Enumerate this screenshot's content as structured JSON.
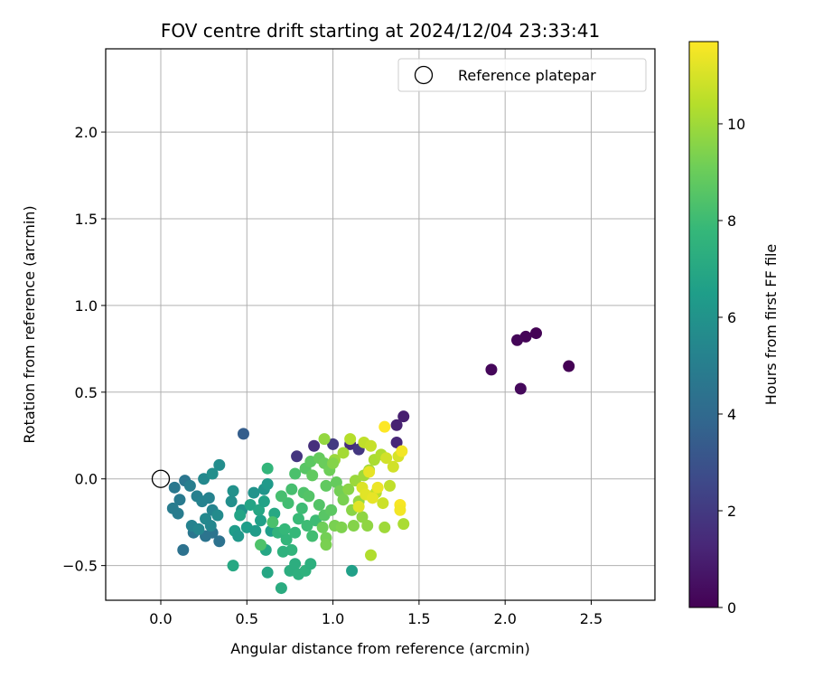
{
  "chart_data": {
    "type": "scatter",
    "title": "FOV centre drift starting at 2024/12/04 23:33:41",
    "xlabel": "Angular distance from reference (arcmin)",
    "ylabel": "Rotation from reference (arcmin)",
    "xlim": [
      -0.32,
      2.87
    ],
    "ylim": [
      -0.7,
      2.48
    ],
    "xticks": [
      "0.0",
      "0.5",
      "1.0",
      "1.5",
      "2.0",
      "2.5"
    ],
    "xtick_values": [
      0.0,
      0.5,
      1.0,
      1.5,
      2.0,
      2.5
    ],
    "yticks": [
      "−0.5",
      "0.0",
      "0.5",
      "1.0",
      "1.5",
      "2.0"
    ],
    "ytick_values": [
      -0.5,
      0.0,
      0.5,
      1.0,
      1.5,
      2.0
    ],
    "grid": true,
    "legend": {
      "position": "top-right",
      "entries": [
        {
          "label": "Reference platepar",
          "marker": "open-circle"
        }
      ]
    },
    "reference_point": {
      "x": 0.0,
      "y": 0.0
    },
    "colorbar": {
      "label": "Hours from first FF file",
      "colormap": "viridis",
      "range": [
        0,
        11.7
      ],
      "ticks": [
        "0",
        "2",
        "4",
        "6",
        "8",
        "10"
      ],
      "tick_values": [
        0,
        2,
        4,
        6,
        8,
        10
      ],
      "stops": [
        "#440154",
        "#482878",
        "#3e4989",
        "#31688e",
        "#26828e",
        "#1f9e89",
        "#35b779",
        "#6ece58",
        "#b5de2b",
        "#fde725"
      ]
    },
    "series": [
      {
        "points": [
          [
            2.37,
            0.65,
            0.0
          ],
          [
            2.18,
            0.84,
            0.05
          ],
          [
            2.12,
            0.82,
            0.1
          ],
          [
            2.07,
            0.8,
            0.15
          ],
          [
            1.92,
            0.63,
            0.2
          ],
          [
            2.09,
            0.52,
            0.25
          ],
          [
            1.41,
            0.36,
            1.0
          ],
          [
            1.37,
            0.31,
            1.1
          ],
          [
            1.37,
            0.21,
            1.3
          ],
          [
            1.1,
            0.2,
            1.5
          ],
          [
            0.89,
            0.19,
            1.6
          ],
          [
            0.79,
            0.13,
            1.8
          ],
          [
            1.0,
            0.2,
            2.0
          ],
          [
            1.15,
            0.17,
            1.9
          ],
          [
            0.48,
            0.26,
            3.5
          ],
          [
            0.13,
            -0.41,
            4.4
          ],
          [
            0.34,
            -0.36,
            4.4
          ],
          [
            0.3,
            -0.31,
            4.5
          ],
          [
            0.19,
            -0.31,
            4.6
          ],
          [
            0.26,
            -0.33,
            4.5
          ],
          [
            0.08,
            -0.05,
            4.7
          ],
          [
            0.14,
            -0.01,
            4.6
          ],
          [
            0.11,
            -0.12,
            4.8
          ],
          [
            0.07,
            -0.17,
            4.9
          ],
          [
            0.1,
            -0.2,
            4.9
          ],
          [
            0.17,
            -0.04,
            5.0
          ],
          [
            0.21,
            -0.1,
            5.1
          ],
          [
            0.24,
            -0.13,
            5.2
          ],
          [
            0.28,
            -0.11,
            5.2
          ],
          [
            0.3,
            -0.18,
            5.3
          ],
          [
            0.18,
            -0.27,
            5.2
          ],
          [
            0.22,
            -0.29,
            5.4
          ],
          [
            0.26,
            -0.23,
            5.5
          ],
          [
            0.29,
            -0.27,
            5.4
          ],
          [
            0.33,
            -0.21,
            5.6
          ],
          [
            0.25,
            0.0,
            5.5
          ],
          [
            0.34,
            0.08,
            5.7
          ],
          [
            0.3,
            0.03,
            5.8
          ],
          [
            0.42,
            -0.07,
            5.9
          ],
          [
            0.41,
            -0.13,
            5.8
          ],
          [
            0.47,
            -0.18,
            6.0
          ],
          [
            0.54,
            -0.08,
            6.0
          ],
          [
            0.6,
            -0.06,
            6.1
          ],
          [
            0.62,
            -0.03,
            6.3
          ],
          [
            0.43,
            -0.3,
            6.4
          ],
          [
            0.45,
            -0.33,
            6.2
          ],
          [
            0.5,
            -0.28,
            6.5
          ],
          [
            0.55,
            -0.3,
            6.4
          ],
          [
            0.58,
            -0.24,
            6.6
          ],
          [
            0.64,
            -0.3,
            6.5
          ],
          [
            0.46,
            -0.21,
            6.8
          ],
          [
            0.52,
            -0.15,
            6.8
          ],
          [
            0.57,
            -0.18,
            6.9
          ],
          [
            0.6,
            -0.13,
            6.7
          ],
          [
            0.66,
            -0.2,
            7.0
          ],
          [
            0.61,
            -0.41,
            6.9
          ],
          [
            0.62,
            -0.54,
            6.9
          ],
          [
            0.42,
            -0.5,
            7.0
          ],
          [
            0.7,
            -0.63,
            7.2
          ],
          [
            0.75,
            -0.53,
            7.3
          ],
          [
            0.8,
            -0.55,
            7.4
          ],
          [
            0.78,
            -0.49,
            7.3
          ],
          [
            0.84,
            -0.53,
            7.5
          ],
          [
            0.87,
            -0.49,
            7.4
          ],
          [
            0.76,
            -0.41,
            7.6
          ],
          [
            0.71,
            -0.42,
            7.5
          ],
          [
            0.73,
            -0.35,
            7.7
          ],
          [
            0.68,
            -0.31,
            7.6
          ],
          [
            0.72,
            -0.29,
            7.8
          ],
          [
            0.78,
            -0.31,
            7.8
          ],
          [
            0.8,
            -0.23,
            7.9
          ],
          [
            0.85,
            -0.27,
            8.0
          ],
          [
            0.88,
            -0.33,
            8.1
          ],
          [
            0.9,
            -0.24,
            8.0
          ],
          [
            0.82,
            -0.17,
            8.0
          ],
          [
            0.74,
            -0.14,
            8.1
          ],
          [
            0.7,
            -0.1,
            8.2
          ],
          [
            0.76,
            -0.06,
            8.2
          ],
          [
            0.62,
            0.06,
            7.7
          ],
          [
            0.78,
            0.03,
            8.3
          ],
          [
            0.83,
            -0.08,
            8.4
          ],
          [
            0.86,
            -0.1,
            8.5
          ],
          [
            0.92,
            -0.15,
            8.5
          ],
          [
            0.95,
            -0.21,
            8.6
          ],
          [
            0.99,
            -0.18,
            8.7
          ],
          [
            0.96,
            -0.04,
            8.8
          ],
          [
            1.02,
            -0.02,
            8.9
          ],
          [
            0.84,
            0.06,
            8.6
          ],
          [
            0.87,
            0.1,
            8.7
          ],
          [
            0.92,
            0.12,
            8.9
          ],
          [
            0.95,
            0.09,
            9.0
          ],
          [
            0.98,
            0.05,
            9.1
          ],
          [
            1.04,
            -0.07,
            9.2
          ],
          [
            1.06,
            -0.12,
            9.3
          ],
          [
            0.94,
            -0.28,
            9.1
          ],
          [
            0.96,
            -0.34,
            9.2
          ],
          [
            0.96,
            -0.38,
            9.3
          ],
          [
            1.01,
            -0.27,
            9.3
          ],
          [
            1.05,
            -0.28,
            9.4
          ],
          [
            1.12,
            -0.27,
            9.5
          ],
          [
            1.11,
            -0.18,
            9.6
          ],
          [
            1.17,
            -0.22,
            9.7
          ],
          [
            1.2,
            -0.27,
            9.7
          ],
          [
            1.15,
            -0.13,
            9.8
          ],
          [
            1.09,
            -0.06,
            9.6
          ],
          [
            1.13,
            -0.01,
            9.9
          ],
          [
            1.18,
            0.02,
            10.0
          ],
          [
            1.21,
            0.05,
            10.1
          ],
          [
            1.24,
            0.11,
            10.2
          ],
          [
            1.28,
            0.14,
            10.3
          ],
          [
            1.01,
            0.11,
            9.9
          ],
          [
            1.06,
            0.15,
            10.1
          ],
          [
            0.95,
            0.23,
            9.8
          ],
          [
            1.1,
            0.23,
            10.4
          ],
          [
            1.18,
            0.21,
            10.6
          ],
          [
            1.22,
            0.19,
            10.7
          ],
          [
            1.25,
            -0.08,
            10.5
          ],
          [
            1.3,
            -0.28,
            10.0
          ],
          [
            1.41,
            -0.26,
            10.2
          ],
          [
            1.22,
            -0.44,
            10.3
          ],
          [
            1.33,
            -0.04,
            10.6
          ],
          [
            1.29,
            -0.14,
            10.8
          ],
          [
            1.31,
            0.12,
            10.9
          ],
          [
            1.35,
            0.07,
            10.9
          ],
          [
            1.38,
            0.13,
            11.0
          ],
          [
            1.17,
            -0.05,
            11.1
          ],
          [
            1.19,
            -0.09,
            11.2
          ],
          [
            1.23,
            -0.11,
            11.3
          ],
          [
            1.26,
            -0.05,
            11.4
          ],
          [
            1.15,
            -0.16,
            11.2
          ],
          [
            1.21,
            0.04,
            11.3
          ],
          [
            1.39,
            -0.15,
            11.6
          ],
          [
            1.39,
            -0.18,
            11.5
          ],
          [
            1.4,
            0.16,
            11.5
          ],
          [
            1.3,
            0.3,
            11.7
          ],
          [
            1.11,
            -0.53,
            6.6
          ],
          [
            0.65,
            -0.25,
            8.3
          ],
          [
            0.58,
            -0.38,
            8.4
          ],
          [
            0.88,
            0.02,
            8.8
          ],
          [
            1.0,
            0.09,
            9.5
          ]
        ]
      }
    ]
  }
}
